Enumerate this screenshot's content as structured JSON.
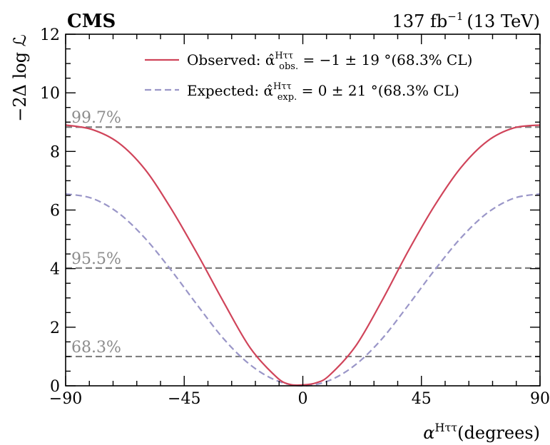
{
  "chart_data": {
    "type": "line",
    "experiment": "CMS",
    "lumi_label": "137 fb",
    "lumi_exp": "−1",
    "energy_label": "(13 TeV)",
    "xlabel_main": "α",
    "xlabel_sup": "Hττ",
    "xlabel_unit": "(degrees)",
    "ylabel": "−2Δ log ℒ",
    "xlim": [
      -90,
      90
    ],
    "ylim": [
      0,
      12
    ],
    "xticks": [
      -90,
      -45,
      0,
      45,
      90
    ],
    "xtick_labels": [
      "−90",
      "−45",
      "0",
      "45",
      "90"
    ],
    "yticks": [
      0,
      2,
      4,
      6,
      8,
      10,
      12
    ],
    "ytick_labels": [
      "0",
      "2",
      "4",
      "6",
      "8",
      "10",
      "12"
    ],
    "grid": false,
    "legend_position": "top-right",
    "series": [
      {
        "name": "Observed",
        "legend_text": "Observed: α̂",
        "legend_sup": "Hττ",
        "legend_sub": "obs.",
        "legend_rest": " = −1 ± 19 °(68.3% CL)",
        "color": "#d0445a",
        "dash": "solid",
        "x": [
          -90,
          -80,
          -70,
          -60,
          -50,
          -40,
          -30,
          -20,
          -10,
          -5,
          0,
          5,
          10,
          20,
          30,
          40,
          50,
          60,
          70,
          80,
          90
        ],
        "y": [
          8.9,
          8.75,
          8.3,
          7.4,
          6.05,
          4.5,
          2.85,
          1.3,
          0.3,
          0.05,
          0.03,
          0.1,
          0.35,
          1.35,
          2.9,
          4.6,
          6.15,
          7.45,
          8.35,
          8.8,
          8.9
        ]
      },
      {
        "name": "Expected",
        "legend_text": "Expected: α̂",
        "legend_sup": "Hττ",
        "legend_sub": "exp.",
        "legend_rest": " = 0 ± 21 °(68.3% CL)",
        "color": "#9a96c8",
        "dash": "dashed",
        "x": [
          -90,
          -80,
          -70,
          -60,
          -50,
          -40,
          -30,
          -20,
          -10,
          0,
          10,
          20,
          30,
          40,
          50,
          60,
          70,
          80,
          90
        ],
        "y": [
          6.55,
          6.4,
          5.9,
          5.05,
          3.95,
          2.75,
          1.6,
          0.72,
          0.18,
          0.0,
          0.18,
          0.72,
          1.6,
          2.75,
          3.95,
          5.05,
          5.9,
          6.4,
          6.55
        ]
      }
    ],
    "reference_lines": [
      {
        "y": 8.83,
        "label": "99.7%"
      },
      {
        "y": 4.02,
        "label": "95.5%"
      },
      {
        "y": 1.0,
        "label": "68.3%"
      }
    ],
    "reference_color": "#7f7f7f",
    "reference_label_color": "#8c8c8c"
  }
}
